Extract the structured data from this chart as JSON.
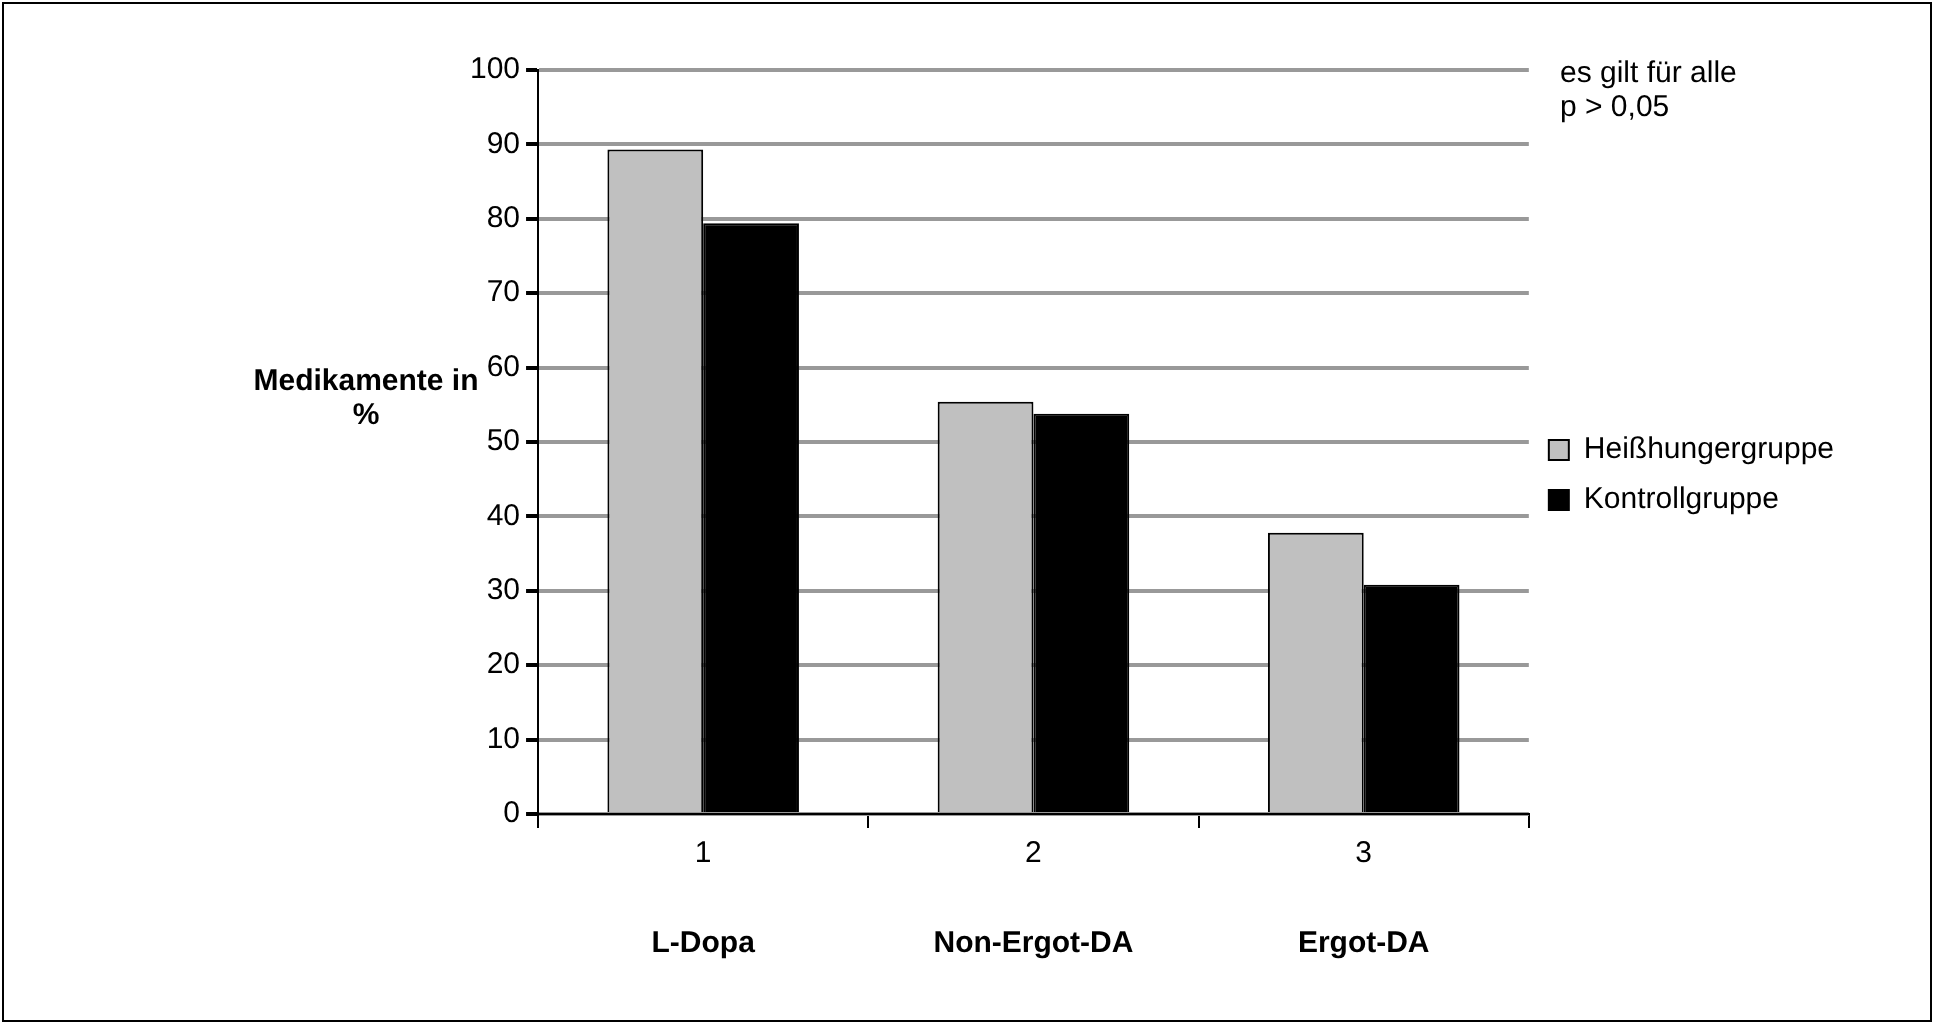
{
  "chart_data": {
    "type": "bar",
    "ylabel": "Medikamente in %",
    "categories": [
      "1",
      "2",
      "3"
    ],
    "series": [
      {
        "name": "Heißhungergruppe",
        "color": "#c0c0c0",
        "values": [
          89.3,
          55.4,
          37.8
        ]
      },
      {
        "name": "Kontrollgruppe",
        "color": "#000000",
        "values": [
          79.4,
          53.8,
          30.8
        ]
      }
    ],
    "ylim": [
      0,
      100
    ],
    "yticks": [
      0,
      10,
      20,
      30,
      40,
      50,
      60,
      70,
      80,
      90,
      100
    ],
    "grid": "y",
    "legend": "right",
    "annotations": [
      "es gilt für alle\np > 0,05",
      "L-Dopa",
      "Non-Ergot-DA",
      "Ergot-DA"
    ]
  }
}
